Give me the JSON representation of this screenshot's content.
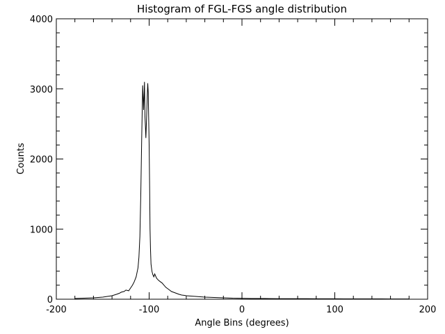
{
  "chart_data": {
    "type": "line",
    "title": "Histogram of FGL-FGS angle distribution",
    "xlabel": "Angle Bins (degrees)",
    "ylabel": "Counts",
    "xlim": [
      -200,
      200
    ],
    "ylim": [
      0,
      4000
    ],
    "x_ticks": [
      -200,
      -100,
      0,
      100,
      200
    ],
    "x_tick_labels": [
      "-200",
      "-100",
      "0",
      "100",
      "200"
    ],
    "y_ticks": [
      0,
      1000,
      2000,
      3000,
      4000
    ],
    "y_tick_labels": [
      "0",
      "1000",
      "2000",
      "3000",
      "4000"
    ],
    "grid": false,
    "line_color": "#000000",
    "series": [
      {
        "x": [
          -180,
          -175,
          -170,
          -165,
          -160,
          -155,
          -150,
          -145,
          -140,
          -135,
          -132,
          -130,
          -127,
          -125,
          -122,
          -120,
          -118,
          -116,
          -114,
          -112,
          -111,
          -110,
          -109,
          -108,
          -107,
          -106,
          -105.5,
          -105,
          -104.5,
          -104,
          -103.5,
          -103,
          -102.5,
          -102,
          -101.5,
          -101,
          -100.5,
          -100,
          -99.5,
          -99,
          -98.5,
          -98,
          -97,
          -96,
          -95,
          -94,
          -92,
          -90,
          -88,
          -86,
          -84,
          -82,
          -80,
          -78,
          -76,
          -74,
          -72,
          -70,
          -68,
          -65,
          -62,
          -60,
          -55,
          -50,
          -45,
          -40,
          -35,
          -30,
          -25,
          -20,
          -15,
          -10,
          -5,
          0,
          10,
          20,
          30,
          40,
          50,
          60,
          70,
          80,
          90,
          100,
          110,
          120,
          130,
          140,
          150,
          160,
          170,
          180
        ],
        "y": [
          10,
          12,
          15,
          18,
          20,
          25,
          30,
          40,
          50,
          70,
          85,
          100,
          110,
          130,
          120,
          160,
          200,
          250,
          320,
          450,
          600,
          900,
          1500,
          2300,
          3050,
          2700,
          2900,
          3100,
          2600,
          2450,
          2300,
          2500,
          2700,
          2900,
          3080,
          2950,
          2600,
          2200,
          1600,
          1000,
          700,
          500,
          400,
          350,
          320,
          360,
          300,
          270,
          250,
          230,
          200,
          170,
          150,
          130,
          110,
          100,
          90,
          80,
          70,
          60,
          55,
          50,
          45,
          40,
          35,
          30,
          28,
          25,
          22,
          20,
          18,
          15,
          14,
          12,
          10,
          10,
          9,
          8,
          8,
          7,
          7,
          6,
          6,
          6,
          5,
          5,
          5,
          5,
          5,
          4,
          4,
          4
        ]
      }
    ]
  }
}
